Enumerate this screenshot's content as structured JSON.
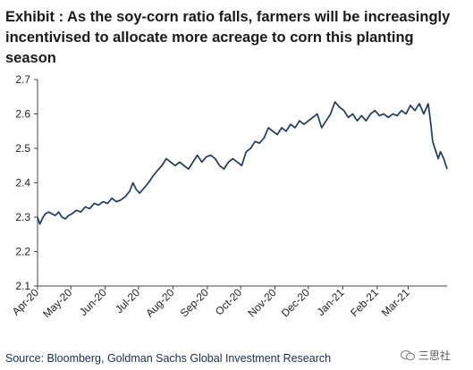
{
  "title": "Exhibit    : As the soy-corn ratio falls, farmers will be increasingly incentivised to allocate more acreage to corn this planting season",
  "source": "Source: Bloomberg, Goldman Sachs Global Investment Research",
  "watermark": "三思社",
  "chart_data": {
    "type": "line",
    "title": "",
    "xlabel": "",
    "ylabel": "",
    "ylim": [
      2.1,
      2.7
    ],
    "yticks": [
      "2.1",
      "2.2",
      "2.3",
      "2.4",
      "2.5",
      "2.6",
      "2.7"
    ],
    "xlim": [
      "2020-04-01",
      "2021-04-05"
    ],
    "xticks": [
      {
        "label": "Apr-20",
        "date": "2020-04-01"
      },
      {
        "label": "May-20",
        "date": "2020-05-01"
      },
      {
        "label": "Jun-20",
        "date": "2020-06-01"
      },
      {
        "label": "Jul-20",
        "date": "2020-07-01"
      },
      {
        "label": "Aug-20",
        "date": "2020-08-01"
      },
      {
        "label": "Sep-20",
        "date": "2020-09-01"
      },
      {
        "label": "Oct-20",
        "date": "2020-10-01"
      },
      {
        "label": "Nov-20",
        "date": "2020-11-01"
      },
      {
        "label": "Dec-20",
        "date": "2020-12-01"
      },
      {
        "label": "Jan-21",
        "date": "2021-01-01"
      },
      {
        "label": "Feb-21",
        "date": "2021-02-01"
      },
      {
        "label": "Mar-21",
        "date": "2021-03-01"
      }
    ],
    "grid": false,
    "line_color": "#1f3b5c",
    "series": [
      {
        "points": [
          [
            "2020-04-01",
            2.3
          ],
          [
            "2020-04-03",
            2.28
          ],
          [
            "2020-04-06",
            2.3
          ],
          [
            "2020-04-08",
            2.31
          ],
          [
            "2020-04-11",
            2.315
          ],
          [
            "2020-04-14",
            2.31
          ],
          [
            "2020-04-17",
            2.305
          ],
          [
            "2020-04-20",
            2.315
          ],
          [
            "2020-04-23",
            2.3
          ],
          [
            "2020-04-26",
            2.295
          ],
          [
            "2020-04-29",
            2.305
          ],
          [
            "2020-05-02",
            2.31
          ],
          [
            "2020-05-06",
            2.32
          ],
          [
            "2020-05-10",
            2.315
          ],
          [
            "2020-05-14",
            2.33
          ],
          [
            "2020-05-18",
            2.325
          ],
          [
            "2020-05-22",
            2.34
          ],
          [
            "2020-05-26",
            2.335
          ],
          [
            "2020-05-30",
            2.345
          ],
          [
            "2020-06-03",
            2.34
          ],
          [
            "2020-06-07",
            2.355
          ],
          [
            "2020-06-11",
            2.345
          ],
          [
            "2020-06-15",
            2.35
          ],
          [
            "2020-06-19",
            2.36
          ],
          [
            "2020-06-23",
            2.375
          ],
          [
            "2020-06-26",
            2.4
          ],
          [
            "2020-06-29",
            2.38
          ],
          [
            "2020-07-02",
            2.37
          ],
          [
            "2020-07-06",
            2.385
          ],
          [
            "2020-07-10",
            2.4
          ],
          [
            "2020-07-14",
            2.42
          ],
          [
            "2020-07-18",
            2.435
          ],
          [
            "2020-07-22",
            2.45
          ],
          [
            "2020-07-26",
            2.47
          ],
          [
            "2020-07-30",
            2.46
          ],
          [
            "2020-08-03",
            2.45
          ],
          [
            "2020-08-07",
            2.46
          ],
          [
            "2020-08-11",
            2.45
          ],
          [
            "2020-08-15",
            2.44
          ],
          [
            "2020-08-19",
            2.46
          ],
          [
            "2020-08-23",
            2.48
          ],
          [
            "2020-08-27",
            2.46
          ],
          [
            "2020-08-31",
            2.475
          ],
          [
            "2020-09-04",
            2.48
          ],
          [
            "2020-09-08",
            2.47
          ],
          [
            "2020-09-12",
            2.45
          ],
          [
            "2020-09-16",
            2.44
          ],
          [
            "2020-09-20",
            2.46
          ],
          [
            "2020-09-24",
            2.47
          ],
          [
            "2020-09-28",
            2.46
          ],
          [
            "2020-10-02",
            2.45
          ],
          [
            "2020-10-06",
            2.49
          ],
          [
            "2020-10-10",
            2.5
          ],
          [
            "2020-10-14",
            2.52
          ],
          [
            "2020-10-18",
            2.515
          ],
          [
            "2020-10-22",
            2.53
          ],
          [
            "2020-10-26",
            2.56
          ],
          [
            "2020-10-30",
            2.55
          ],
          [
            "2020-11-03",
            2.54
          ],
          [
            "2020-11-07",
            2.56
          ],
          [
            "2020-11-11",
            2.55
          ],
          [
            "2020-11-15",
            2.57
          ],
          [
            "2020-11-19",
            2.56
          ],
          [
            "2020-11-23",
            2.58
          ],
          [
            "2020-11-27",
            2.57
          ],
          [
            "2020-12-01",
            2.58
          ],
          [
            "2020-12-05",
            2.59
          ],
          [
            "2020-12-09",
            2.6
          ],
          [
            "2020-12-13",
            2.56
          ],
          [
            "2020-12-17",
            2.58
          ],
          [
            "2020-12-21",
            2.6
          ],
          [
            "2020-12-25",
            2.635
          ],
          [
            "2020-12-29",
            2.62
          ],
          [
            "2021-01-02",
            2.61
          ],
          [
            "2021-01-06",
            2.59
          ],
          [
            "2021-01-10",
            2.6
          ],
          [
            "2021-01-14",
            2.58
          ],
          [
            "2021-01-18",
            2.595
          ],
          [
            "2021-01-22",
            2.58
          ],
          [
            "2021-01-26",
            2.6
          ],
          [
            "2021-01-30",
            2.61
          ],
          [
            "2021-02-03",
            2.595
          ],
          [
            "2021-02-07",
            2.6
          ],
          [
            "2021-02-11",
            2.59
          ],
          [
            "2021-02-15",
            2.6
          ],
          [
            "2021-02-19",
            2.595
          ],
          [
            "2021-02-23",
            2.61
          ],
          [
            "2021-02-27",
            2.6
          ],
          [
            "2021-03-03",
            2.625
          ],
          [
            "2021-03-07",
            2.61
          ],
          [
            "2021-03-11",
            2.63
          ],
          [
            "2021-03-15",
            2.6
          ],
          [
            "2021-03-19",
            2.63
          ],
          [
            "2021-03-21",
            2.58
          ],
          [
            "2021-03-23",
            2.52
          ],
          [
            "2021-03-26",
            2.49
          ],
          [
            "2021-03-28",
            2.47
          ],
          [
            "2021-03-30",
            2.49
          ],
          [
            "2021-04-02",
            2.47
          ],
          [
            "2021-04-05",
            2.44
          ]
        ]
      }
    ]
  }
}
